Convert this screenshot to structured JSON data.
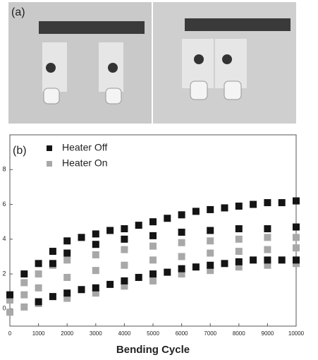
{
  "panel_a": {
    "label": "(a)"
  },
  "chart_data": {
    "type": "scatter",
    "panel_label": "(b)",
    "x_label": "Bending Cycle",
    "xlim": [
      0,
      10000
    ],
    "xticks": [
      0,
      1000,
      2000,
      3000,
      4000,
      5000,
      6000,
      7000,
      8000,
      9000,
      10000
    ],
    "ylim": [
      -1,
      10
    ],
    "yticks": [
      0,
      2,
      4,
      6,
      8
    ],
    "legend": "upper left",
    "series": [
      {
        "name": "Heater Off",
        "color": "#141414",
        "x": [
          0,
          500,
          1000,
          1500,
          2000,
          2500,
          3000,
          3500,
          4000,
          4500,
          5000,
          5500,
          6000,
          6500,
          7000,
          7500,
          8000,
          8500,
          9000,
          9500,
          10000,
          1500,
          2000,
          3000,
          4000,
          5000,
          6000,
          7000,
          8000,
          9000,
          10000,
          1000,
          1500,
          2000,
          2500,
          3000,
          3500,
          4000,
          4500,
          5000,
          5500,
          6000,
          6500,
          7000,
          7500,
          8000,
          8500,
          9000,
          9500,
          10000
        ],
        "values": [
          0.8,
          2.0,
          2.6,
          3.3,
          3.9,
          4.1,
          4.3,
          4.5,
          4.6,
          4.8,
          5.0,
          5.2,
          5.4,
          5.6,
          5.7,
          5.8,
          5.9,
          6.0,
          6.1,
          6.1,
          6.2,
          2.6,
          3.2,
          3.7,
          4.0,
          4.2,
          4.4,
          4.5,
          4.6,
          4.6,
          4.7,
          0.4,
          0.7,
          0.9,
          1.1,
          1.2,
          1.4,
          1.6,
          1.8,
          2.0,
          2.1,
          2.3,
          2.4,
          2.5,
          2.6,
          2.7,
          2.8,
          2.8,
          2.8,
          2.8
        ]
      },
      {
        "name": "Heater On",
        "color": "#a8a8a8",
        "x": [
          0,
          500,
          1000,
          1500,
          2000,
          3000,
          4000,
          5000,
          6000,
          7000,
          8000,
          9000,
          10000,
          500,
          1000,
          2000,
          3000,
          4000,
          5000,
          6000,
          7000,
          8000,
          9000,
          10000,
          0,
          500,
          1000,
          2000,
          3000,
          4000,
          5000,
          6000,
          7000,
          8000,
          9000,
          10000
        ],
        "values": [
          0.5,
          1.5,
          2.0,
          2.5,
          2.8,
          3.1,
          3.4,
          3.6,
          3.8,
          3.9,
          4.0,
          4.1,
          4.1,
          0.8,
          1.2,
          1.8,
          2.2,
          2.5,
          2.8,
          3.0,
          3.2,
          3.3,
          3.4,
          3.5,
          -0.2,
          0.1,
          0.3,
          0.6,
          0.9,
          1.3,
          1.6,
          2.0,
          2.2,
          2.4,
          2.5,
          2.6
        ]
      }
    ]
  }
}
